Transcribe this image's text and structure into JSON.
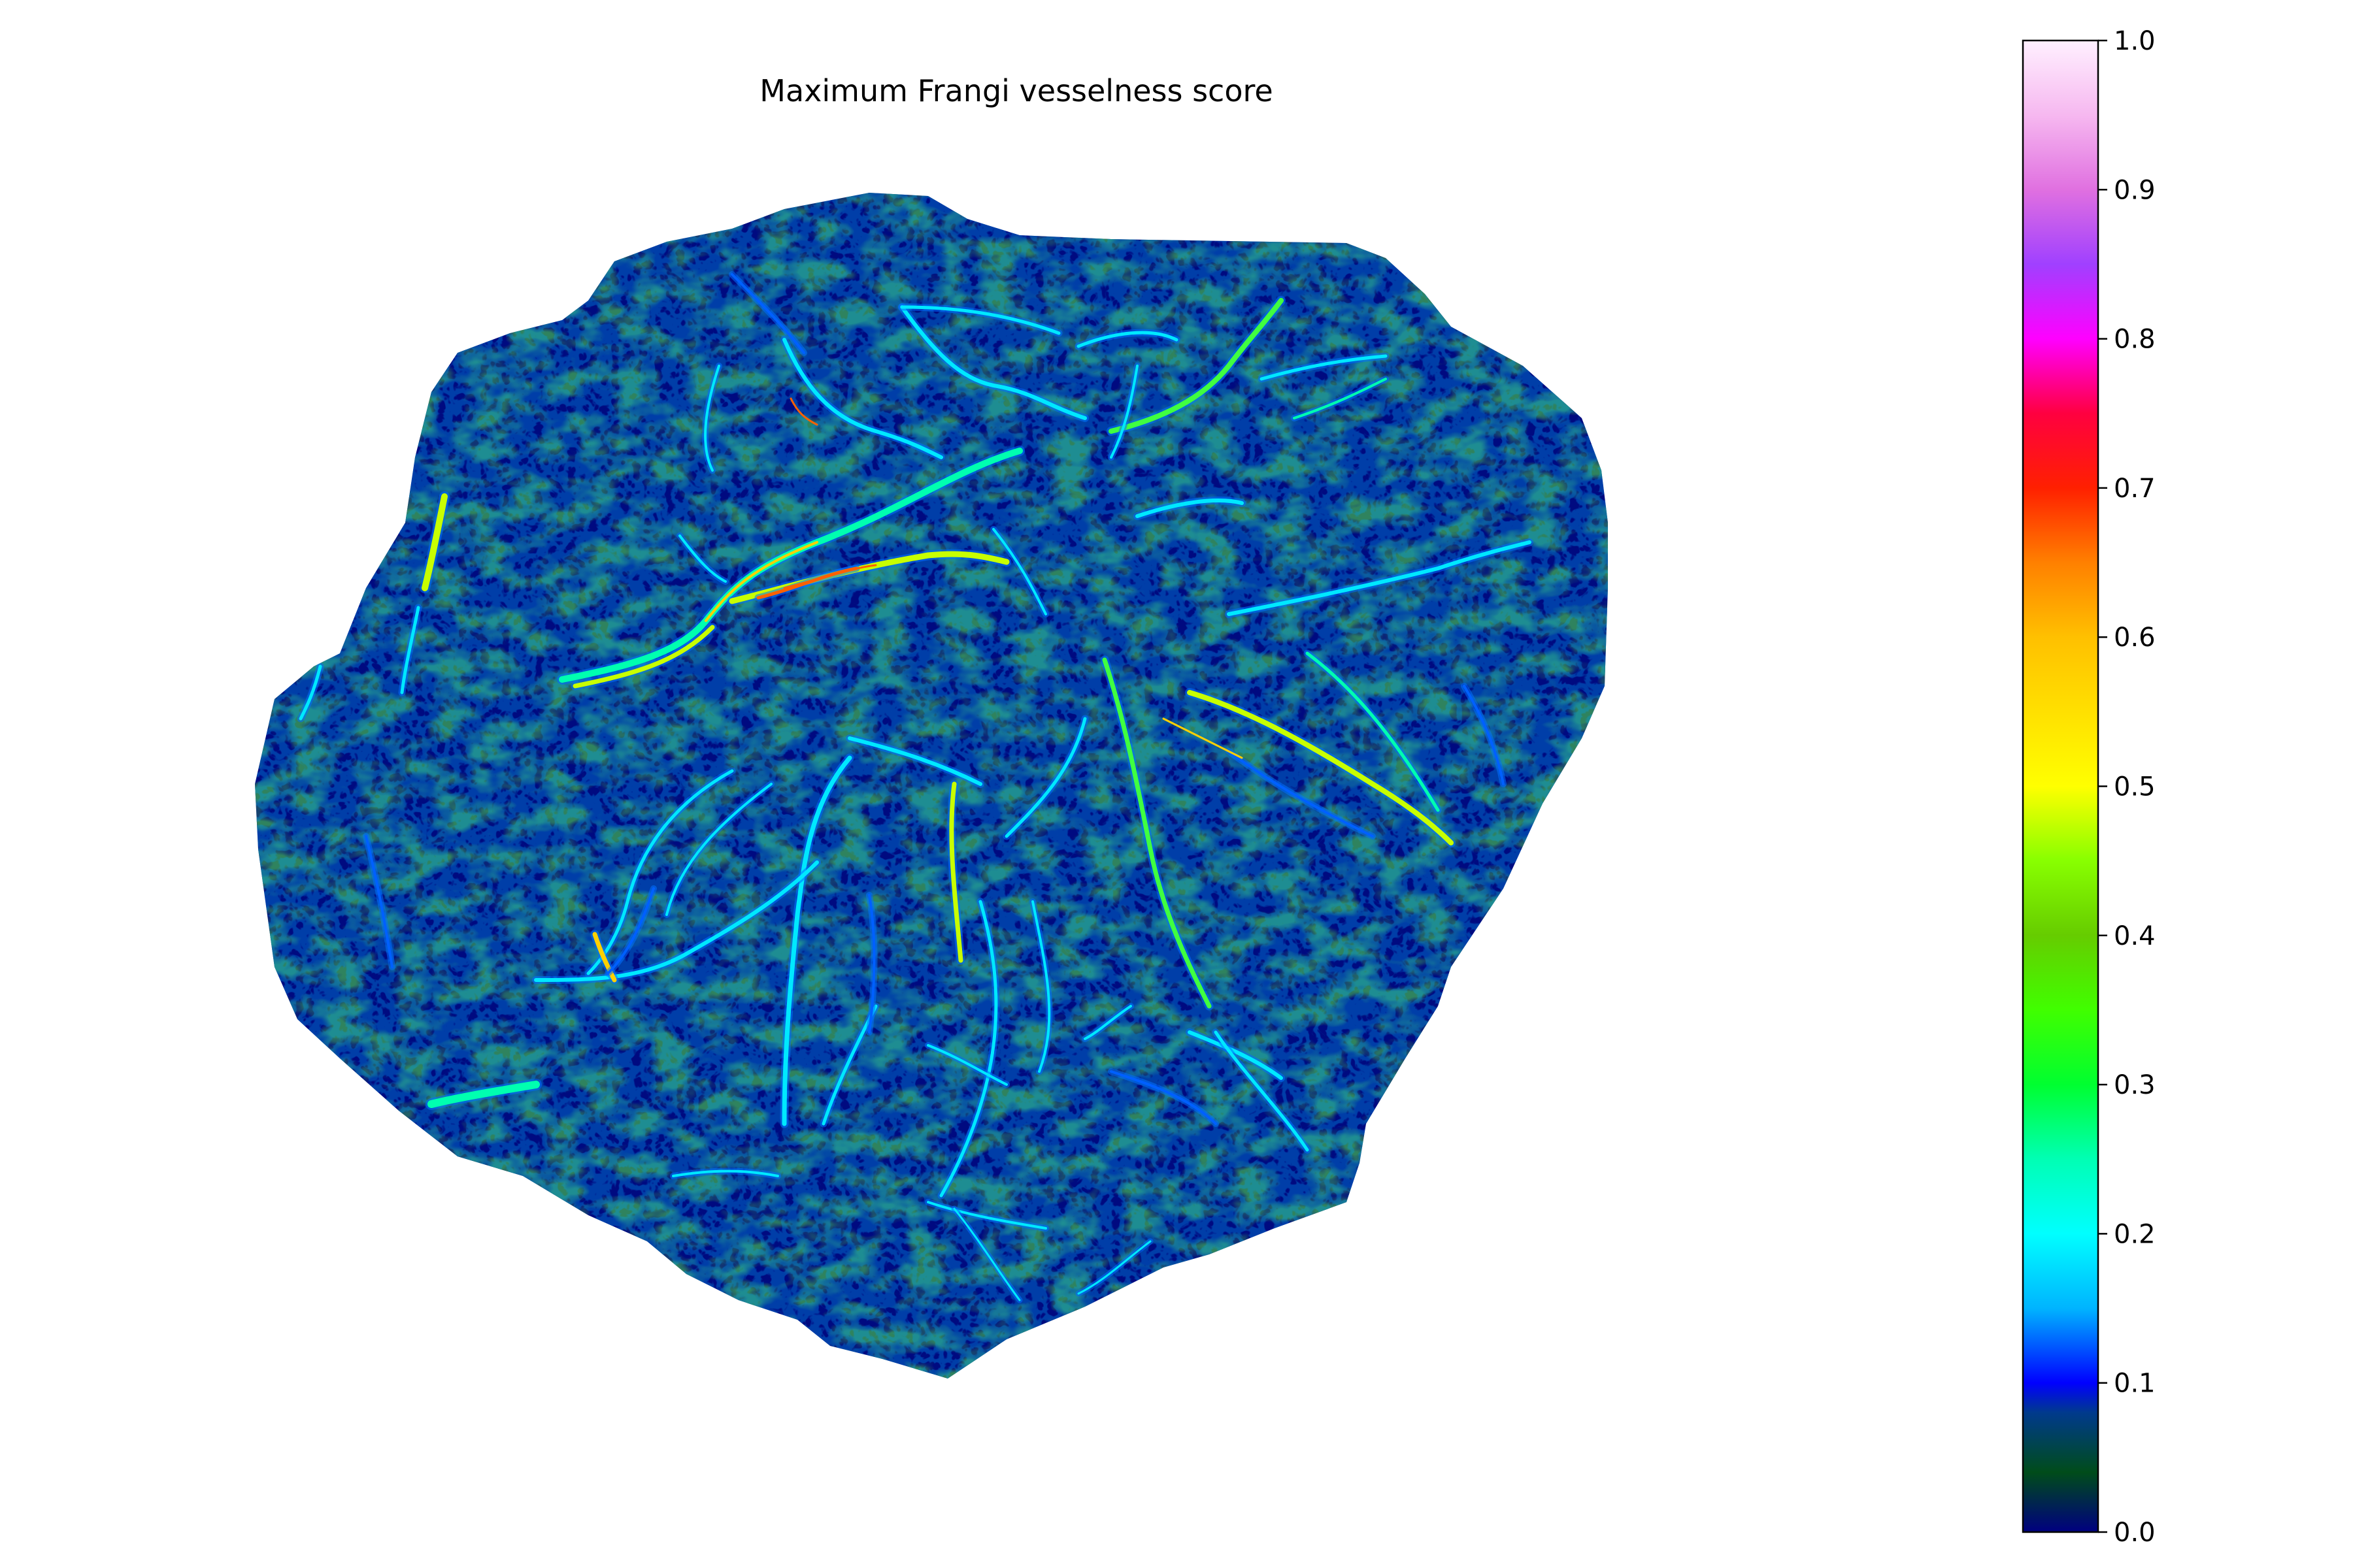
{
  "figure": {
    "title": "Maximum Frangi vesselness score"
  },
  "colorbar": {
    "vmin": 0.0,
    "vmax": 1.0,
    "colormap": "gist_ncar",
    "tick_labels": [
      "0.0",
      "0.1",
      "0.2",
      "0.3",
      "0.4",
      "0.5",
      "0.6",
      "0.7",
      "0.8",
      "0.9",
      "1.0"
    ],
    "gradient_stops": [
      {
        "v": 0.0,
        "color": "#000080"
      },
      {
        "v": 0.04,
        "color": "#004c1a"
      },
      {
        "v": 0.08,
        "color": "#003a8c"
      },
      {
        "v": 0.1,
        "color": "#0000ff"
      },
      {
        "v": 0.15,
        "color": "#00b4ff"
      },
      {
        "v": 0.2,
        "color": "#00ffff"
      },
      {
        "v": 0.25,
        "color": "#00ffb4"
      },
      {
        "v": 0.3,
        "color": "#00ff30"
      },
      {
        "v": 0.35,
        "color": "#40ff00"
      },
      {
        "v": 0.4,
        "color": "#66cc00"
      },
      {
        "v": 0.45,
        "color": "#88ff00"
      },
      {
        "v": 0.5,
        "color": "#ffff00"
      },
      {
        "v": 0.55,
        "color": "#ffe000"
      },
      {
        "v": 0.6,
        "color": "#ffc000"
      },
      {
        "v": 0.65,
        "color": "#ff8000"
      },
      {
        "v": 0.7,
        "color": "#ff2000"
      },
      {
        "v": 0.75,
        "color": "#ff0040"
      },
      {
        "v": 0.8,
        "color": "#ff00ff"
      },
      {
        "v": 0.85,
        "color": "#a040ff"
      },
      {
        "v": 0.9,
        "color": "#e070e0"
      },
      {
        "v": 0.95,
        "color": "#f6b8f0"
      },
      {
        "v": 1.0,
        "color": "#fff0ff"
      }
    ]
  },
  "image": {
    "background_color": "#000a80",
    "texture_color": "#0b4f1a",
    "vessel_colors": [
      "#00e8ff",
      "#00ffb0",
      "#40ff40",
      "#c8ff00",
      "#ffd000",
      "#ff6000",
      "#0060ff"
    ]
  }
}
